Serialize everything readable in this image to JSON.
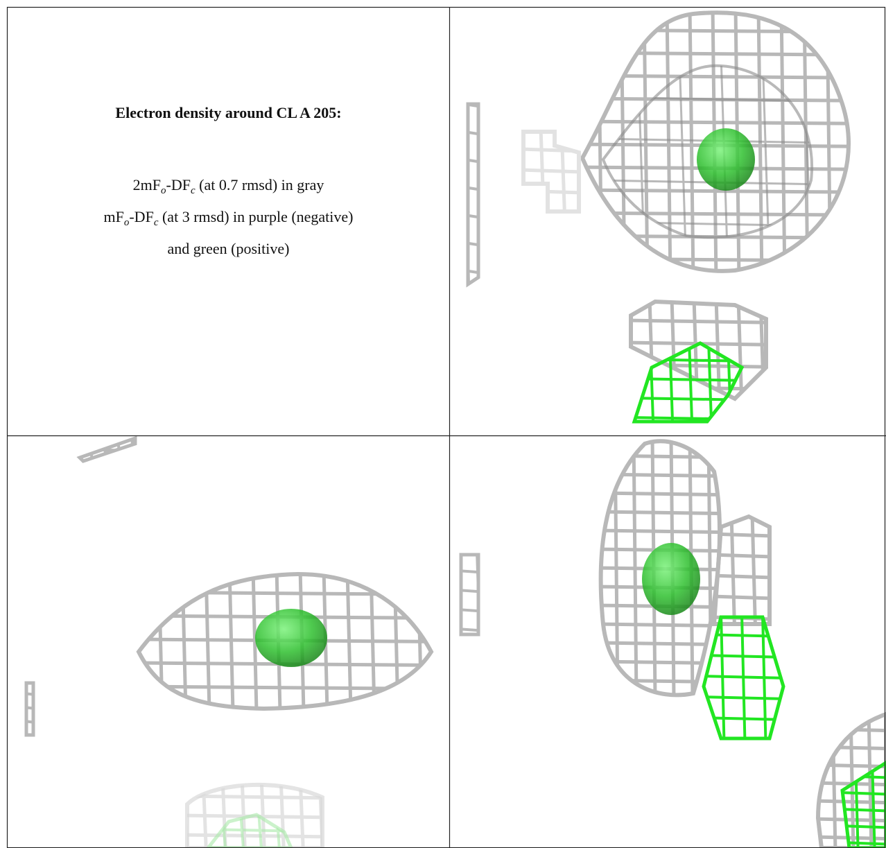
{
  "title": "Electron density around CL A 205:",
  "lines": [
    [
      "2mF",
      "o",
      "-DF",
      "c",
      " (at 0.7 rmsd) in gray"
    ],
    [
      "mF",
      "o",
      "-DF",
      "c",
      " (at 3 rmsd) in purple (negative)"
    ],
    [
      "and green (positive)"
    ]
  ]
}
